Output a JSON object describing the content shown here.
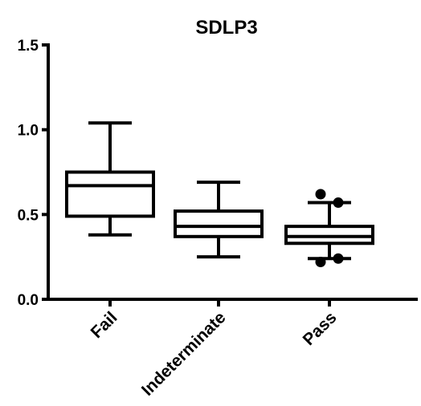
{
  "chart_data": {
    "type": "boxplot",
    "title": "SDLP3",
    "xlabel": "",
    "ylabel": "",
    "ylim": [
      0.0,
      1.5
    ],
    "yticks": [
      0.0,
      0.5,
      1.0,
      1.5
    ],
    "ytick_labels": [
      "0.0",
      "0.5",
      "1.0",
      "1.5"
    ],
    "categories": [
      "Fail",
      "Indeterminate",
      "Pass"
    ],
    "boxes": [
      {
        "category": "Fail",
        "whisker_low": 0.38,
        "q1": 0.49,
        "median": 0.67,
        "q3": 0.75,
        "whisker_high": 1.04,
        "outliers": []
      },
      {
        "category": "Indeterminate",
        "whisker_low": 0.25,
        "q1": 0.37,
        "median": 0.43,
        "q3": 0.52,
        "whisker_high": 0.69,
        "outliers": []
      },
      {
        "category": "Pass",
        "whisker_low": 0.24,
        "q1": 0.33,
        "median": 0.37,
        "q3": 0.43,
        "whisker_high": 0.57,
        "outliers": [
          0.62,
          0.57,
          0.22,
          0.24
        ]
      }
    ],
    "grid": false,
    "legend": "none",
    "color": "#000000"
  }
}
